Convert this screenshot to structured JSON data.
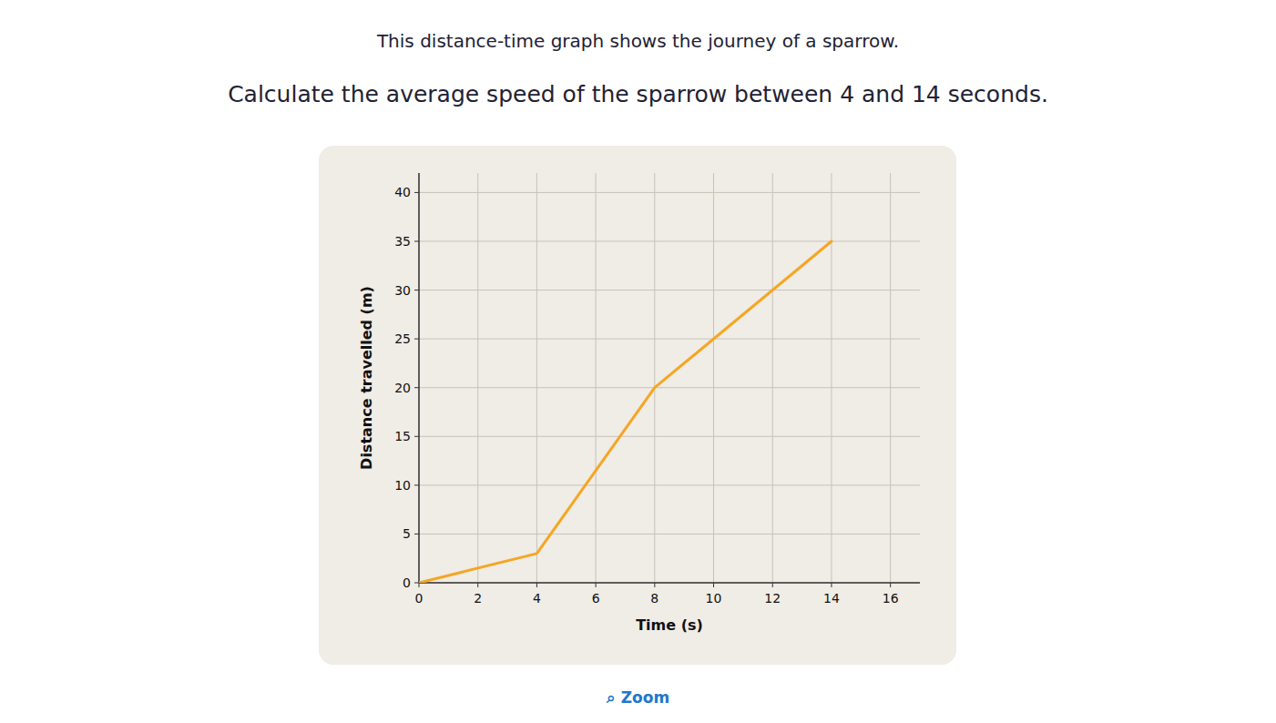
{
  "chart_data": {
    "type": "line",
    "title": "This distance-time graph shows the journey of a sparrow.",
    "subtitle": "Calculate the average speed of the sparrow between 4 and 14 seconds.",
    "xlabel": "Time (s)",
    "ylabel": "Distance travelled (m)",
    "x": [
      0,
      4,
      8,
      14
    ],
    "values": [
      0,
      3,
      20,
      35
    ],
    "color": "#f5a623",
    "xlim": [
      0,
      17
    ],
    "ylim": [
      0,
      42
    ],
    "xticks": [
      0,
      2,
      4,
      6,
      8,
      10,
      12,
      14,
      16
    ],
    "yticks": [
      0,
      5,
      10,
      15,
      20,
      25,
      30,
      35,
      40
    ],
    "grid": true,
    "annotations": [
      "⌕ Zoom"
    ]
  }
}
